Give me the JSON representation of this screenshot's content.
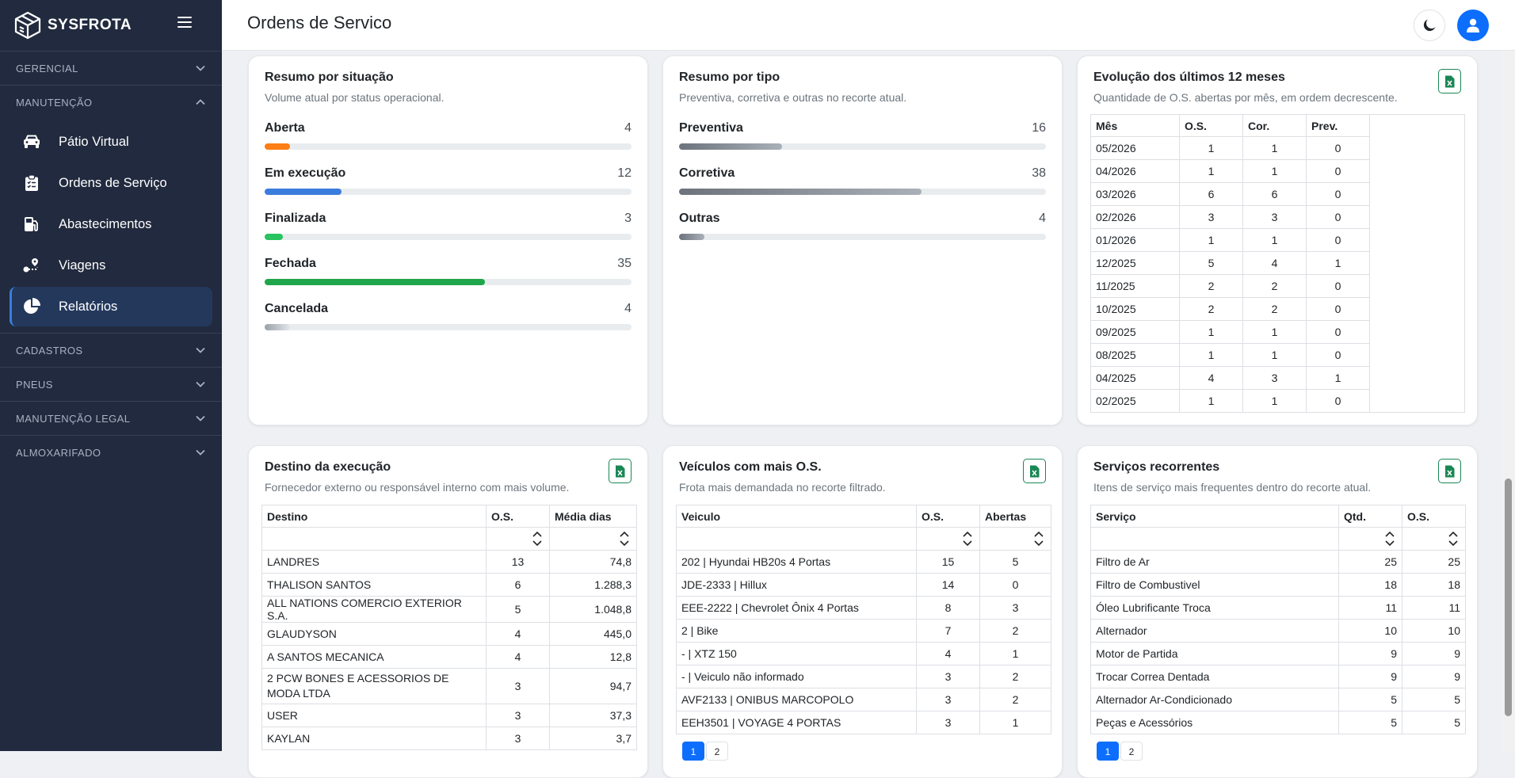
{
  "brand": {
    "name": "SYSFROTA",
    "logo_icon": "cube-logo-icon"
  },
  "sidebar": {
    "sections": [
      {
        "key": "gerencial",
        "label": "GERENCIAL",
        "expanded": false
      },
      {
        "key": "manutencao",
        "label": "MANUTENÇÃO",
        "expanded": true,
        "items": [
          {
            "label": "Pátio Virtual",
            "icon": "car-icon",
            "active": false
          },
          {
            "label": "Ordens de Serviço",
            "icon": "clipboard-icon",
            "active": false
          },
          {
            "label": "Abastecimentos",
            "icon": "gas-pump-icon",
            "active": false
          },
          {
            "label": "Viagens",
            "icon": "route-icon",
            "active": false
          },
          {
            "label": "Relatórios",
            "icon": "pie-chart-icon",
            "active": true
          }
        ]
      },
      {
        "key": "cadastros",
        "label": "CADASTROS",
        "expanded": false
      },
      {
        "key": "pneus",
        "label": "PNEUS",
        "expanded": false
      },
      {
        "key": "manutencao_legal",
        "label": "MANUTENÇÃO LEGAL",
        "expanded": false
      },
      {
        "key": "almoxarifado",
        "label": "ALMOXARIFADO",
        "expanded": false
      }
    ]
  },
  "header": {
    "title": "Ordens de Servico",
    "theme_icon": "moon-icon",
    "user_icon": "user-icon"
  },
  "colors": {
    "accent": "#0d6efd",
    "sidebar_bg": "#212a3e",
    "excel_green": "#198754"
  },
  "cards": {
    "situacao": {
      "title": "Resumo por situação",
      "subtitle": "Volume atual por status operacional.",
      "items": [
        {
          "label": "Aberta",
          "value": 4,
          "pct": 0.07,
          "color": "#fd7e14"
        },
        {
          "label": "Em execução",
          "value": 12,
          "pct": 0.21,
          "color": "#3b7ddd"
        },
        {
          "label": "Finalizada",
          "value": 3,
          "pct": 0.05,
          "color": "#28c45f"
        },
        {
          "label": "Fechada",
          "value": 35,
          "pct": 0.6,
          "color": "#1fa64a"
        },
        {
          "label": "Cancelada",
          "value": 4,
          "pct": 0.07,
          "color": "#adb5bd"
        }
      ]
    },
    "tipo": {
      "title": "Resumo por tipo",
      "subtitle": "Preventiva, corretiva e outras no recorte atual.",
      "items": [
        {
          "label": "Preventiva",
          "value": 16,
          "pct": 0.28,
          "color": "#7d8590"
        },
        {
          "label": "Corretiva",
          "value": 38,
          "pct": 0.66,
          "color": "#7d8590"
        },
        {
          "label": "Outras",
          "value": 4,
          "pct": 0.07,
          "color": "#7d8590"
        }
      ]
    },
    "evolucao": {
      "title": "Evolução dos últimos 12 meses",
      "subtitle": "Quantidade de O.S. abertas por mês, em ordem decrescente.",
      "columns": [
        "Mês",
        "O.S.",
        "Cor.",
        "Prev."
      ],
      "rows": [
        [
          "05/2026",
          "1",
          "1",
          "0"
        ],
        [
          "04/2026",
          "1",
          "1",
          "0"
        ],
        [
          "03/2026",
          "6",
          "6",
          "0"
        ],
        [
          "02/2026",
          "3",
          "3",
          "0"
        ],
        [
          "01/2026",
          "1",
          "1",
          "0"
        ],
        [
          "12/2025",
          "5",
          "4",
          "1"
        ],
        [
          "11/2025",
          "2",
          "2",
          "0"
        ],
        [
          "10/2025",
          "2",
          "2",
          "0"
        ],
        [
          "09/2025",
          "1",
          "1",
          "0"
        ],
        [
          "08/2025",
          "1",
          "1",
          "0"
        ],
        [
          "04/2025",
          "4",
          "3",
          "1"
        ],
        [
          "02/2025",
          "1",
          "1",
          "0"
        ]
      ]
    },
    "destino": {
      "title": "Destino da execução",
      "subtitle": "Fornecedor externo ou responsável interno com mais volume.",
      "columns": [
        "Destino",
        "O.S.",
        "Média dias"
      ],
      "rows": [
        [
          "LANDRES",
          "13",
          "74,8"
        ],
        [
          "THALISON SANTOS",
          "6",
          "1.288,3"
        ],
        [
          "ALL NATIONS COMERCIO EXTERIOR S.A.",
          "5",
          "1.048,8"
        ],
        [
          "GLAUDYSON",
          "4",
          "445,0"
        ],
        [
          "A SANTOS MECANICA",
          "4",
          "12,8"
        ],
        [
          "2 PCW BONES E ACESSORIOS DE MODA LTDA",
          "3",
          "94,7"
        ],
        [
          "USER",
          "3",
          "37,3"
        ],
        [
          "KAYLAN",
          "3",
          "3,7"
        ]
      ]
    },
    "veiculos": {
      "title": "Veículos com mais O.S.",
      "subtitle": "Frota mais demandada no recorte filtrado.",
      "columns": [
        "Veiculo",
        "O.S.",
        "Abertas"
      ],
      "rows": [
        [
          "202 | Hyundai HB20s 4 Portas",
          "15",
          "5"
        ],
        [
          "JDE-2333 | Hillux",
          "14",
          "0"
        ],
        [
          "EEE-2222 | Chevrolet Ônix 4 Portas",
          "8",
          "3"
        ],
        [
          "2 | Bike",
          "7",
          "2"
        ],
        [
          "- | XTZ 150",
          "4",
          "1"
        ],
        [
          "- | Veiculo não informado",
          "3",
          "2"
        ],
        [
          "AVF2133 | ONIBUS MARCOPOLO",
          "3",
          "2"
        ],
        [
          "EEH3501 | VOYAGE 4 PORTAS",
          "3",
          "1"
        ]
      ],
      "pages": [
        "1",
        "2"
      ]
    },
    "servicos": {
      "title": "Serviços recorrentes",
      "subtitle": "Itens de serviço mais frequentes dentro do recorte atual.",
      "columns": [
        "Serviço",
        "Qtd.",
        "O.S."
      ],
      "rows": [
        [
          "Filtro de Ar",
          "25",
          "25"
        ],
        [
          "Filtro de Combustivel",
          "18",
          "18"
        ],
        [
          "Óleo Lubrificante Troca",
          "11",
          "11"
        ],
        [
          "Alternador",
          "10",
          "10"
        ],
        [
          "Motor de Partida",
          "9",
          "9"
        ],
        [
          "Trocar Correa Dentada",
          "9",
          "9"
        ],
        [
          "Alternador Ar-Condicionado",
          "5",
          "5"
        ],
        [
          "Peças e Acessórios",
          "5",
          "5"
        ]
      ],
      "pages": [
        "1",
        "2"
      ]
    }
  }
}
